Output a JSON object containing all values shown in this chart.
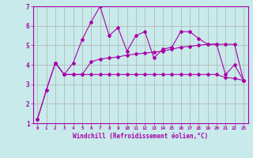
{
  "title": "",
  "xlabel": "Windchill (Refroidissement éolien,°C)",
  "bg_color": "#c8eaea",
  "grid_color": "#b0b0b0",
  "line_color": "#aa00aa",
  "xlim": [
    -0.5,
    23.5
  ],
  "ylim": [
    1,
    7
  ],
  "yticks": [
    1,
    2,
    3,
    4,
    5,
    6,
    7
  ],
  "xticks": [
    0,
    1,
    2,
    3,
    4,
    5,
    6,
    7,
    8,
    9,
    10,
    11,
    12,
    13,
    14,
    15,
    16,
    17,
    18,
    19,
    20,
    21,
    22,
    23
  ],
  "line1_x": [
    0,
    1,
    2,
    3,
    4,
    5,
    6,
    7,
    8,
    9,
    10,
    11,
    12,
    13,
    14,
    15,
    16,
    17,
    18,
    19,
    20,
    21,
    22,
    23
  ],
  "line1_y": [
    1.2,
    2.7,
    4.1,
    3.5,
    4.1,
    5.3,
    6.2,
    7.0,
    5.5,
    5.9,
    4.7,
    5.5,
    5.7,
    4.35,
    4.8,
    4.9,
    5.7,
    5.7,
    5.35,
    5.05,
    5.05,
    3.5,
    4.0,
    3.2
  ],
  "line2_x": [
    0,
    1,
    2,
    3,
    4,
    5,
    6,
    7,
    8,
    9,
    10,
    11,
    12,
    13,
    14,
    15,
    16,
    17,
    18,
    19,
    20,
    21,
    22,
    23
  ],
  "line2_y": [
    1.2,
    2.7,
    4.1,
    3.5,
    3.5,
    3.5,
    4.15,
    4.3,
    4.35,
    4.4,
    4.5,
    4.55,
    4.6,
    4.65,
    4.7,
    4.8,
    4.9,
    4.95,
    5.0,
    5.05,
    5.05,
    5.05,
    5.05,
    3.2
  ],
  "line3_x": [
    2,
    3,
    4,
    5,
    6,
    7,
    8,
    9,
    10,
    11,
    12,
    13,
    14,
    15,
    16,
    17,
    18,
    19,
    20,
    21,
    22,
    23
  ],
  "line3_y": [
    4.1,
    3.5,
    3.5,
    3.5,
    3.5,
    3.5,
    3.5,
    3.5,
    3.5,
    3.5,
    3.5,
    3.5,
    3.5,
    3.5,
    3.5,
    3.5,
    3.5,
    3.5,
    3.5,
    3.35,
    3.3,
    3.2
  ]
}
